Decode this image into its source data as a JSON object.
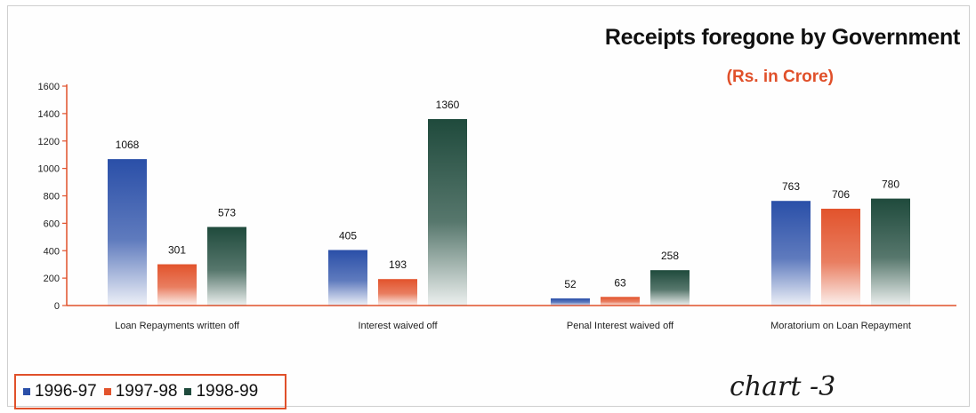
{
  "chart_data": {
    "type": "bar",
    "title": "Receipts foregone by Government",
    "subtitle": "(Rs. in Crore)",
    "categories": [
      "Loan Repayments written off",
      "Interest waived off",
      "Penal Interest waived off",
      "Moratorium on Loan Repayment"
    ],
    "series": [
      {
        "name": "1996-97",
        "color": "#2a4fa8",
        "values": [
          1068,
          405,
          52,
          763
        ]
      },
      {
        "name": "1997-98",
        "color": "#e2532c",
        "values": [
          301,
          193,
          63,
          706
        ]
      },
      {
        "name": "1998-99",
        "color": "#1f4a3c",
        "values": [
          573,
          1360,
          258,
          780
        ]
      }
    ],
    "yticks": [
      0,
      200,
      400,
      600,
      800,
      1000,
      1200,
      1400,
      1600
    ],
    "ylim": [
      0,
      1600
    ],
    "grid": false,
    "legend_position": "bottom-left",
    "axis_color": "#e0502a"
  },
  "annotation": {
    "handwritten": "chart -3"
  }
}
